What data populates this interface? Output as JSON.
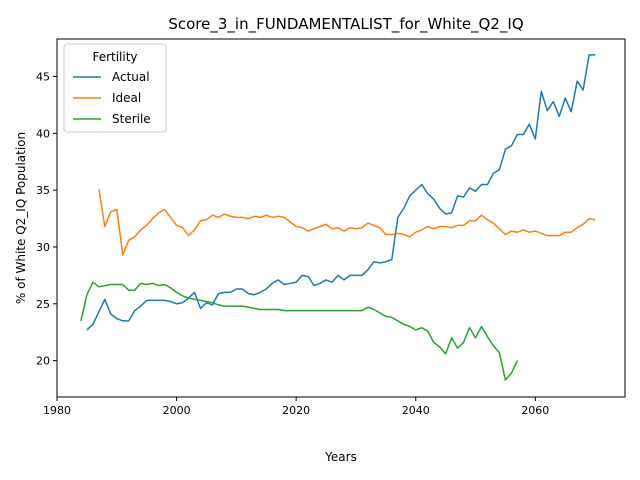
{
  "chart_data": {
    "type": "line",
    "title": "Score_3_in_FUNDAMENTALIST_for_White_Q2_IQ",
    "xlabel": "Years",
    "ylabel": "% of White Q2_IQ Population",
    "xlim": [
      1980,
      2075
    ],
    "ylim": [
      16.8,
      48.3
    ],
    "xticks": [
      1980,
      2000,
      2020,
      2040,
      2060
    ],
    "yticks": [
      20,
      25,
      30,
      35,
      40,
      45
    ],
    "grid": false,
    "legend": {
      "title": "Fertility",
      "placement": "top-left"
    },
    "series": [
      {
        "name": "Actual",
        "color": "#1f77b4",
        "x": [
          1985,
          1986,
          1987,
          1988,
          1989,
          1990,
          1991,
          1992,
          1993,
          1994,
          1995,
          1996,
          1997,
          1998,
          1999,
          2000,
          2001,
          2002,
          2003,
          2004,
          2005,
          2006,
          2007,
          2008,
          2009,
          2010,
          2011,
          2012,
          2013,
          2014,
          2015,
          2016,
          2017,
          2018,
          2019,
          2020,
          2021,
          2022,
          2023,
          2024,
          2025,
          2026,
          2027,
          2028,
          2029,
          2030,
          2031,
          2032,
          2033,
          2034,
          2035,
          2036,
          2037,
          2038,
          2039,
          2040,
          2041,
          2042,
          2043,
          2044,
          2045,
          2046,
          2047,
          2048,
          2049,
          2050,
          2051,
          2052,
          2053,
          2054,
          2055,
          2056,
          2057,
          2058,
          2059,
          2060,
          2061,
          2062,
          2063,
          2064,
          2065,
          2066,
          2067,
          2068,
          2069,
          2070
        ],
        "values": [
          22.7,
          23.2,
          24.3,
          25.4,
          24.1,
          23.7,
          23.5,
          23.5,
          24.4,
          24.8,
          25.3,
          25.3,
          25.3,
          25.3,
          25.2,
          25.0,
          25.1,
          25.5,
          26.0,
          24.6,
          25.1,
          24.9,
          25.9,
          26.0,
          26.0,
          26.3,
          26.3,
          25.9,
          25.8,
          26.0,
          26.3,
          26.8,
          27.1,
          26.7,
          26.8,
          26.9,
          27.5,
          27.4,
          26.6,
          26.8,
          27.1,
          26.9,
          27.5,
          27.1,
          27.5,
          27.5,
          27.5,
          28.0,
          28.7,
          28.6,
          28.7,
          28.9,
          32.6,
          33.4,
          34.5,
          35.0,
          35.5,
          34.7,
          34.2,
          33.4,
          32.9,
          33.0,
          34.5,
          34.4,
          35.2,
          34.9,
          35.5,
          35.5,
          36.5,
          36.8,
          38.6,
          38.9,
          39.9,
          39.9,
          40.8,
          39.5,
          43.7,
          42.0,
          42.8,
          41.5,
          43.1,
          41.9,
          44.6,
          43.8,
          46.9,
          46.9
        ]
      },
      {
        "name": "Ideal",
        "color": "#ff7f0e",
        "x": [
          1987,
          1988,
          1989,
          1990,
          1991,
          1992,
          1993,
          1994,
          1995,
          1996,
          1997,
          1998,
          1999,
          2000,
          2001,
          2002,
          2003,
          2004,
          2005,
          2006,
          2007,
          2008,
          2009,
          2010,
          2011,
          2012,
          2013,
          2014,
          2015,
          2016,
          2017,
          2018,
          2019,
          2020,
          2021,
          2022,
          2023,
          2024,
          2025,
          2026,
          2027,
          2028,
          2029,
          2030,
          2031,
          2032,
          2033,
          2034,
          2035,
          2036,
          2037,
          2038,
          2039,
          2040,
          2041,
          2042,
          2043,
          2044,
          2045,
          2046,
          2047,
          2048,
          2049,
          2050,
          2051,
          2052,
          2053,
          2054,
          2055,
          2056,
          2057,
          2058,
          2059,
          2060,
          2061,
          2062,
          2063,
          2064,
          2065,
          2066,
          2067,
          2068,
          2069,
          2070
        ],
        "values": [
          35.1,
          31.8,
          33.1,
          33.3,
          29.3,
          30.6,
          30.9,
          31.5,
          31.9,
          32.5,
          33.0,
          33.3,
          32.6,
          31.9,
          31.7,
          31.0,
          31.5,
          32.3,
          32.4,
          32.8,
          32.6,
          32.9,
          32.7,
          32.6,
          32.6,
          32.5,
          32.7,
          32.6,
          32.8,
          32.6,
          32.7,
          32.6,
          32.2,
          31.8,
          31.7,
          31.4,
          31.6,
          31.8,
          32.0,
          31.6,
          31.7,
          31.4,
          31.7,
          31.6,
          31.7,
          32.1,
          31.9,
          31.7,
          31.1,
          31.1,
          31.2,
          31.1,
          30.9,
          31.3,
          31.5,
          31.8,
          31.6,
          31.8,
          31.8,
          31.7,
          31.9,
          31.9,
          32.3,
          32.3,
          32.8,
          32.4,
          32.1,
          31.6,
          31.1,
          31.4,
          31.3,
          31.5,
          31.3,
          31.4,
          31.2,
          31.0,
          31.0,
          31.0,
          31.3,
          31.3,
          31.7,
          32.0,
          32.5,
          32.4
        ]
      },
      {
        "name": "Sterile",
        "color": "#2ca02c",
        "x": [
          1984,
          1985,
          1986,
          1987,
          1988,
          1989,
          1990,
          1991,
          1992,
          1993,
          1994,
          1995,
          1996,
          1997,
          1998,
          1999,
          2000,
          2001,
          2002,
          2003,
          2004,
          2005,
          2006,
          2007,
          2008,
          2009,
          2010,
          2011,
          2012,
          2013,
          2014,
          2015,
          2016,
          2017,
          2018,
          2019,
          2020,
          2021,
          2022,
          2023,
          2024,
          2025,
          2026,
          2027,
          2028,
          2029,
          2030,
          2031,
          2032,
          2033,
          2034,
          2035,
          2036,
          2037,
          2038,
          2039,
          2040,
          2041,
          2042,
          2043,
          2044,
          2045,
          2046,
          2047,
          2048,
          2049,
          2050,
          2051,
          2052,
          2053,
          2054,
          2055,
          2056,
          2057
        ],
        "values": [
          23.5,
          25.8,
          26.9,
          26.5,
          26.6,
          26.7,
          26.7,
          26.7,
          26.2,
          26.2,
          26.8,
          26.7,
          26.8,
          26.6,
          26.7,
          26.4,
          26.0,
          25.7,
          25.5,
          25.4,
          25.3,
          25.2,
          25.1,
          24.9,
          24.8,
          24.8,
          24.8,
          24.8,
          24.7,
          24.6,
          24.5,
          24.5,
          24.5,
          24.5,
          24.4,
          24.4,
          24.4,
          24.4,
          24.4,
          24.4,
          24.4,
          24.4,
          24.4,
          24.4,
          24.4,
          24.4,
          24.4,
          24.4,
          24.7,
          24.5,
          24.2,
          23.9,
          23.8,
          23.5,
          23.2,
          23.0,
          22.7,
          22.9,
          22.6,
          21.6,
          21.2,
          20.6,
          22.0,
          21.1,
          21.6,
          22.9,
          22.0,
          23.0,
          22.1,
          21.3,
          20.7,
          18.3,
          18.9,
          20.0
        ]
      }
    ]
  }
}
